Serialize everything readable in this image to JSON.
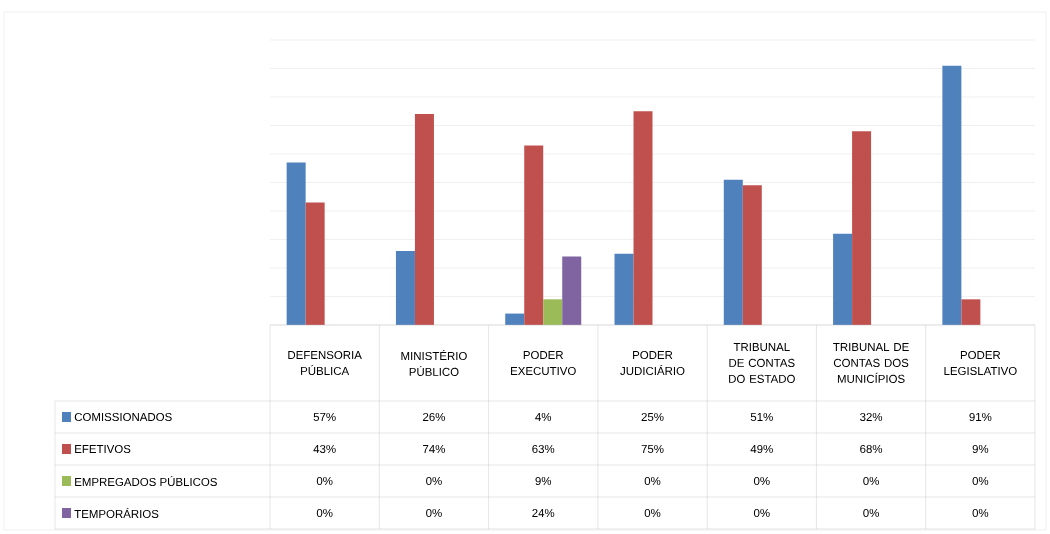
{
  "chart_data": {
    "type": "bar",
    "categories": [
      "DEFENSORIA PÚBLICA",
      "MINISTÉRIO PÚBLICO",
      "PODER EXECUTIVO",
      "PODER JUDICIÁRIO",
      "TRIBUNAL DE CONTAS DO ESTADO",
      "TRIBUNAL DE CONTAS DOS MUNICÍPIOS",
      "PODER LEGISLATIVO"
    ],
    "series": [
      {
        "name": "COMISSIONADOS",
        "color": "#4f81bd",
        "values": [
          57,
          26,
          4,
          25,
          51,
          32,
          91
        ],
        "value_labels": [
          "57%",
          "26%",
          "4%",
          "25%",
          "51%",
          "32%",
          "91%"
        ]
      },
      {
        "name": "EFETIVOS",
        "color": "#c0504d",
        "values": [
          43,
          74,
          63,
          75,
          49,
          68,
          9
        ],
        "value_labels": [
          "43%",
          "74%",
          "63%",
          "75%",
          "49%",
          "68%",
          "9%"
        ]
      },
      {
        "name": "EMPREGADOS PÚBLICOS",
        "color": "#9bbb59",
        "values": [
          0,
          0,
          9,
          0,
          0,
          0,
          0
        ],
        "value_labels": [
          "0%",
          "0%",
          "9%",
          "0%",
          "0%",
          "0%",
          "0%"
        ]
      },
      {
        "name": "TEMPORÁRIOS",
        "color": "#8064a2",
        "values": [
          0,
          0,
          24,
          0,
          0,
          0,
          0
        ],
        "value_labels": [
          "0%",
          "0%",
          "24%",
          "0%",
          "0%",
          "0%",
          "0%"
        ]
      }
    ],
    "ylim": [
      0,
      100
    ],
    "yticks": [
      {
        "value": 0,
        "label": null
      },
      {
        "value": 10,
        "label": null
      },
      {
        "value": 20,
        "label": null
      },
      {
        "value": 30,
        "label": null
      },
      {
        "value": 40,
        "label": null
      },
      {
        "value": 50,
        "label": null
      },
      {
        "value": 60,
        "label": null
      },
      {
        "value": 70,
        "label": null
      },
      {
        "value": 80,
        "label": null
      },
      {
        "value": 90,
        "label": null
      },
      {
        "value": 100,
        "label": null
      }
    ],
    "grid": "y",
    "legend": "bottom",
    "tick_labels": "x"
  }
}
